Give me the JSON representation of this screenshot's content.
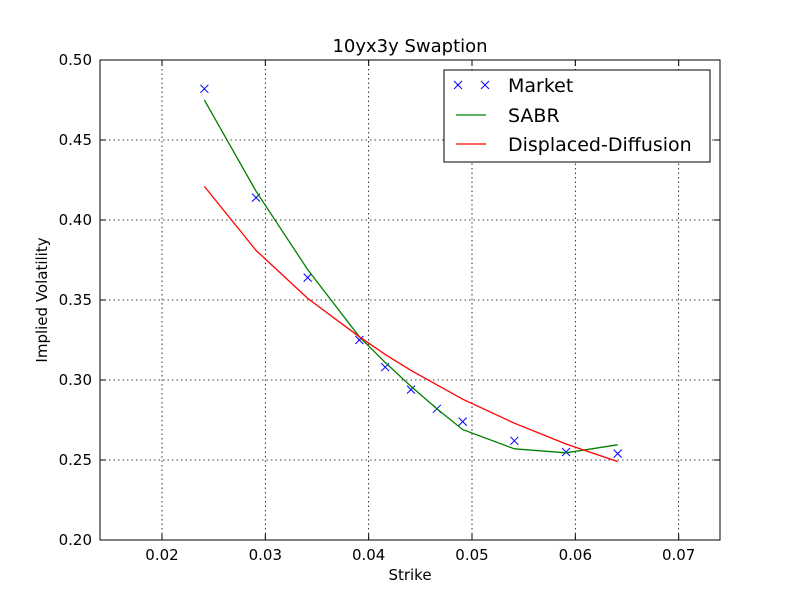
{
  "chart_data": {
    "type": "line",
    "title": "10yx3y Swaption",
    "xlabel": "Strike",
    "ylabel": "Implied Volatility",
    "xlim": [
      0.014,
      0.074
    ],
    "ylim": [
      0.2,
      0.5
    ],
    "xticks": [
      0.02,
      0.03,
      0.04,
      0.05,
      0.06,
      0.07
    ],
    "xtick_labels": [
      "0.02",
      "0.03",
      "0.04",
      "0.05",
      "0.06",
      "0.07"
    ],
    "yticks": [
      0.2,
      0.25,
      0.3,
      0.35,
      0.4,
      0.45,
      0.5
    ],
    "ytick_labels": [
      "0.20",
      "0.25",
      "0.30",
      "0.35",
      "0.40",
      "0.45",
      "0.50"
    ],
    "grid": true,
    "legend_position": "top-right",
    "series": [
      {
        "name": "Market",
        "kind": "marker",
        "marker": "x",
        "color": "#0000ff",
        "x": [
          0.0241,
          0.0291,
          0.0341,
          0.0391,
          0.0416,
          0.0441,
          0.0466,
          0.0491,
          0.0541,
          0.0591,
          0.0641
        ],
        "y": [
          0.482,
          0.414,
          0.364,
          0.325,
          0.308,
          0.294,
          0.282,
          0.274,
          0.262,
          0.255,
          0.254
        ]
      },
      {
        "name": "SABR",
        "kind": "line",
        "color": "#008000",
        "x": [
          0.0241,
          0.0291,
          0.0341,
          0.0391,
          0.0416,
          0.0441,
          0.0466,
          0.0491,
          0.0541,
          0.0591,
          0.0641
        ],
        "y": [
          0.475,
          0.418,
          0.369,
          0.327,
          0.311,
          0.296,
          0.282,
          0.269,
          0.257,
          0.2545,
          0.2595
        ]
      },
      {
        "name": "Displaced-Diffusion",
        "kind": "line",
        "color": "#ff0000",
        "x": [
          0.0241,
          0.0291,
          0.0341,
          0.0391,
          0.0416,
          0.0441,
          0.0466,
          0.0491,
          0.0541,
          0.0591,
          0.0641
        ],
        "y": [
          0.421,
          0.381,
          0.351,
          0.327,
          0.316,
          0.306,
          0.297,
          0.288,
          0.273,
          0.26,
          0.249
        ]
      }
    ]
  }
}
